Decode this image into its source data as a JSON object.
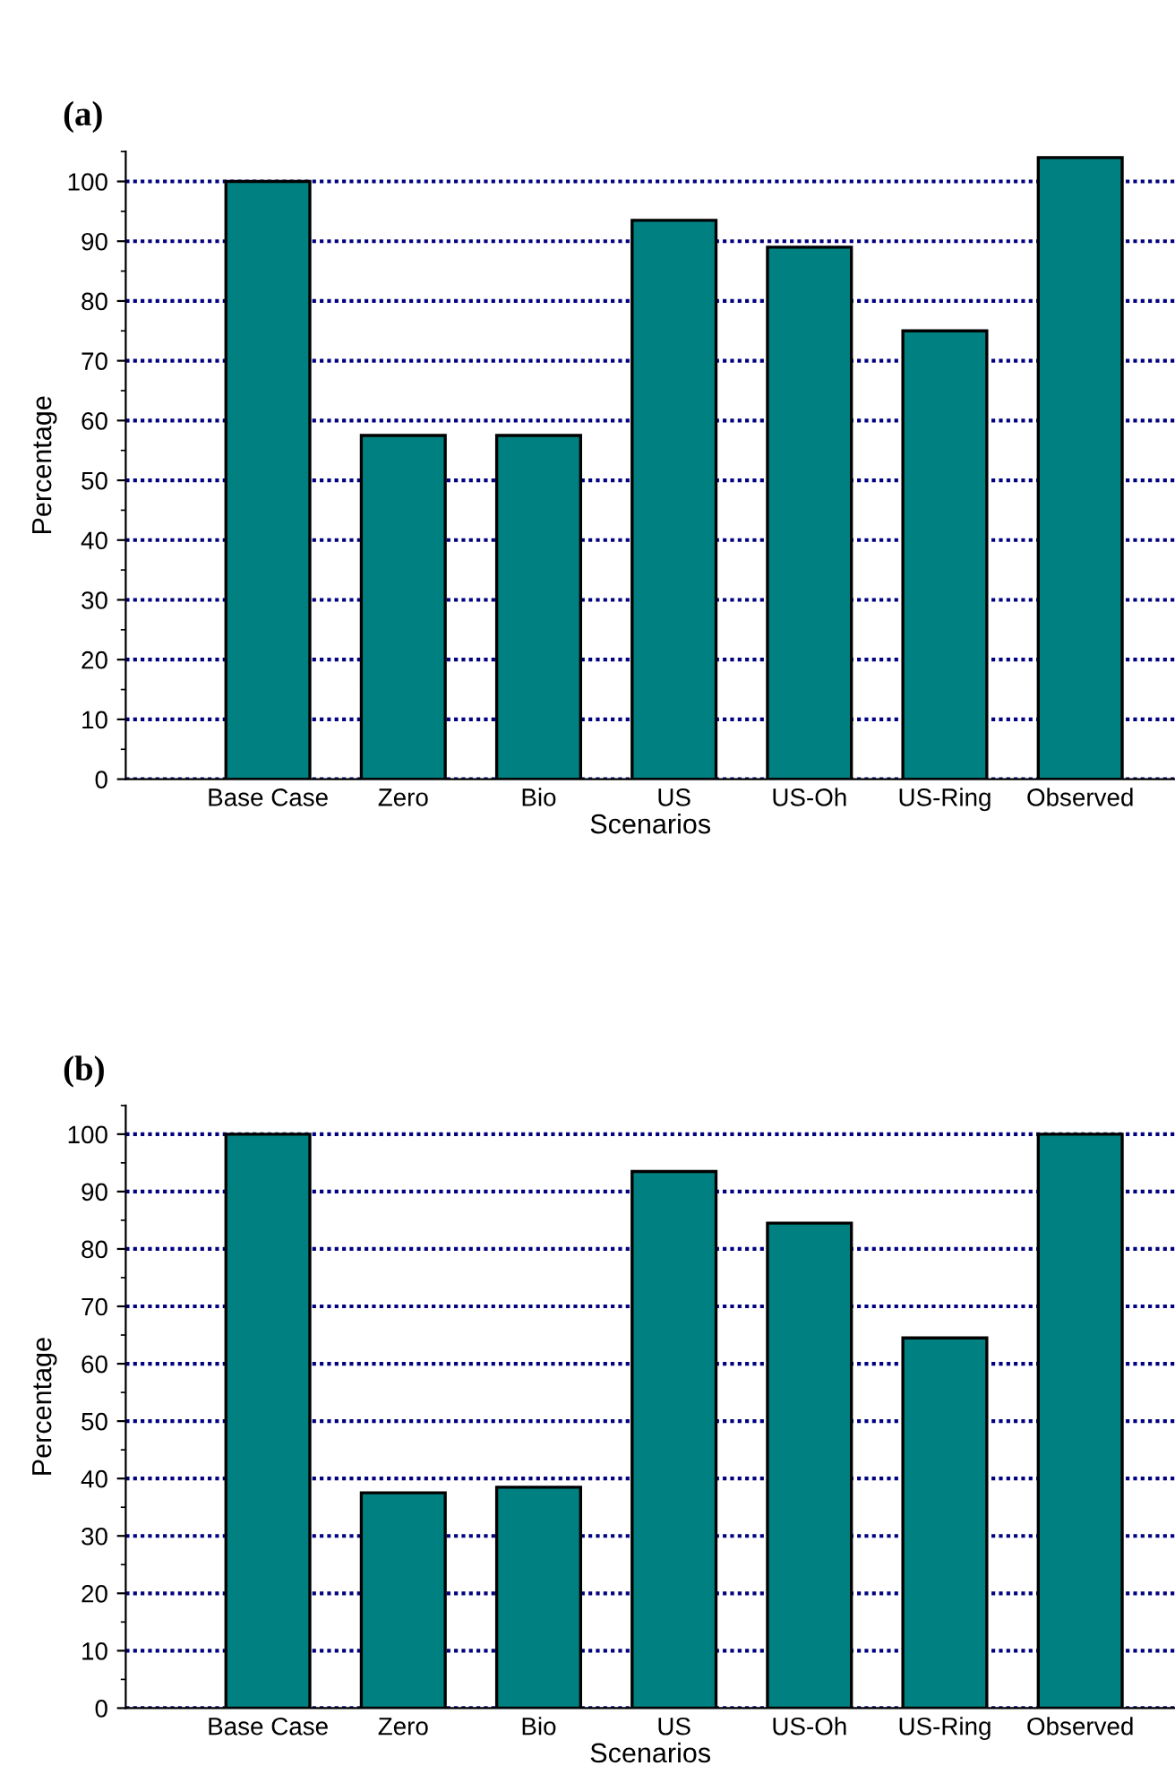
{
  "chart_data": [
    {
      "type": "bar",
      "title": "(a)",
      "xlabel": "Scenarios",
      "ylabel": "Percentage",
      "categories": [
        "Base Case",
        "Zero",
        "Bio",
        "US",
        "US-Oh",
        "US-Ring",
        "Observed"
      ],
      "values": [
        100,
        57.5,
        57.5,
        93.5,
        89,
        75,
        104
      ],
      "color": "#008080",
      "ylim": [
        0,
        105
      ],
      "yticks": [
        0,
        10,
        20,
        30,
        40,
        50,
        60,
        70,
        80,
        90,
        100
      ],
      "grid": "y"
    },
    {
      "type": "bar",
      "title": "(b)",
      "xlabel": "Scenarios",
      "ylabel": "Percentage",
      "categories": [
        "Base Case",
        "Zero",
        "Bio",
        "US",
        "US-Oh",
        "US-Ring",
        "Observed"
      ],
      "values": [
        100,
        37.5,
        38.5,
        93.5,
        84.5,
        64.5,
        100
      ],
      "color": "#008080",
      "ylim": [
        0,
        105
      ],
      "yticks": [
        0,
        10,
        20,
        30,
        40,
        50,
        60,
        70,
        80,
        90,
        100
      ],
      "grid": "y"
    }
  ]
}
